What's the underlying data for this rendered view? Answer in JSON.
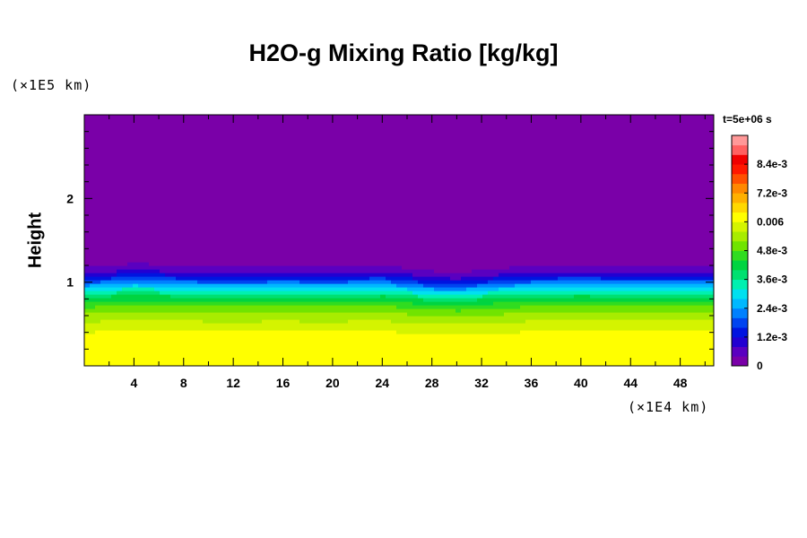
{
  "chart_data": {
    "type": "heatmap",
    "title": "H2O-g Mixing Ratio [kg/kg]",
    "ylabel": "Height",
    "y_scale_label": "(×1E5 km)",
    "x_scale_label": "(×1E4 km)",
    "time_label": "t=5e+06 s",
    "xlim": [
      0,
      50.7
    ],
    "ylim": [
      0,
      3
    ],
    "x_ticks": [
      4,
      8,
      12,
      16,
      20,
      24,
      28,
      32,
      36,
      40,
      44,
      48
    ],
    "x_tick_labels": [
      "4",
      "8",
      "12",
      "16",
      "20",
      "24",
      "28",
      "32",
      "36",
      "40",
      "44",
      "48"
    ],
    "y_ticks": [
      1,
      2
    ],
    "y_tick_labels": [
      "1",
      "2"
    ],
    "colorbar": {
      "min": 0,
      "max": 0.0096,
      "ticks": [
        0,
        0.0012,
        0.0024,
        0.0036,
        0.0048,
        0.006,
        0.0072,
        0.0084
      ],
      "tick_labels": [
        "0",
        "1.2e-3",
        "2.4e-3",
        "3.6e-3",
        "4.8e-3",
        "0.006",
        "7.2e-3",
        "8.4e-3"
      ],
      "colors": [
        "#7a00a8",
        "#5a00c0",
        "#2200d2",
        "#0014e0",
        "#0044f0",
        "#0080ff",
        "#00b8ff",
        "#00e0f0",
        "#00f0b0",
        "#00e070",
        "#00d440",
        "#30dc20",
        "#70e400",
        "#a8ec00",
        "#d4f400",
        "#ffff00",
        "#ffd800",
        "#ffb000",
        "#ff8800",
        "#ff5000",
        "#ff1800",
        "#f00000",
        "#ff6060",
        "#ff9898"
      ]
    },
    "profile": {
      "heights": [
        0,
        0.3,
        0.5,
        0.65,
        0.75,
        0.85,
        0.95,
        1.05,
        1.15,
        1.25,
        1.3
      ],
      "values": [
        0.0063,
        0.0063,
        0.0058,
        0.0052,
        0.0047,
        0.004,
        0.003,
        0.0018,
        0.0008,
        0.0003,
        0
      ]
    },
    "interface": {
      "x": [
        0,
        4,
        8,
        12,
        16,
        20,
        24,
        26,
        28,
        30,
        32,
        36,
        40,
        44,
        48,
        50.7
      ],
      "top_height": [
        1.25,
        1.3,
        1.27,
        1.26,
        1.27,
        1.26,
        1.28,
        1.24,
        1.2,
        1.18,
        1.22,
        1.27,
        1.28,
        1.27,
        1.27,
        1.27
      ]
    }
  }
}
